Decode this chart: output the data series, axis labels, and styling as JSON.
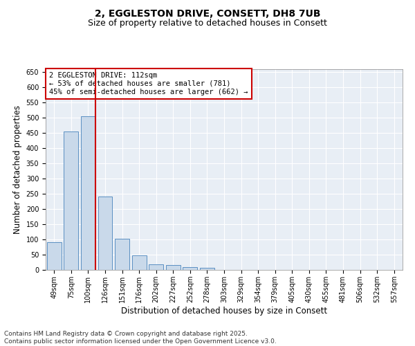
{
  "title_line1": "2, EGGLESTON DRIVE, CONSETT, DH8 7UB",
  "title_line2": "Size of property relative to detached houses in Consett",
  "xlabel": "Distribution of detached houses by size in Consett",
  "ylabel": "Number of detached properties",
  "bar_color": "#c9d9ea",
  "bar_edge_color": "#5a8fc2",
  "background_color": "#e8eef5",
  "grid_color": "#ffffff",
  "fig_background": "#ffffff",
  "categories": [
    "49sqm",
    "75sqm",
    "100sqm",
    "126sqm",
    "151sqm",
    "176sqm",
    "202sqm",
    "227sqm",
    "252sqm",
    "278sqm",
    "303sqm",
    "329sqm",
    "354sqm",
    "379sqm",
    "405sqm",
    "430sqm",
    "455sqm",
    "481sqm",
    "506sqm",
    "532sqm",
    "557sqm"
  ],
  "values": [
    90,
    455,
    505,
    242,
    103,
    47,
    18,
    15,
    10,
    6,
    0,
    0,
    0,
    0,
    0,
    0,
    0,
    0,
    0,
    0,
    0
  ],
  "ylim": [
    0,
    660
  ],
  "yticks": [
    0,
    50,
    100,
    150,
    200,
    250,
    300,
    350,
    400,
    450,
    500,
    550,
    600,
    650
  ],
  "vline_color": "#cc0000",
  "vline_position": 2.425,
  "annotation_title": "2 EGGLESTON DRIVE: 112sqm",
  "annotation_line2": "← 53% of detached houses are smaller (781)",
  "annotation_line3": "45% of semi-detached houses are larger (662) →",
  "annotation_box_color": "#cc0000",
  "footer_line1": "Contains HM Land Registry data © Crown copyright and database right 2025.",
  "footer_line2": "Contains public sector information licensed under the Open Government Licence v3.0.",
  "title_fontsize": 10,
  "subtitle_fontsize": 9,
  "axis_label_fontsize": 8.5,
  "tick_fontsize": 7,
  "annotation_fontsize": 7.5,
  "footer_fontsize": 6.5
}
